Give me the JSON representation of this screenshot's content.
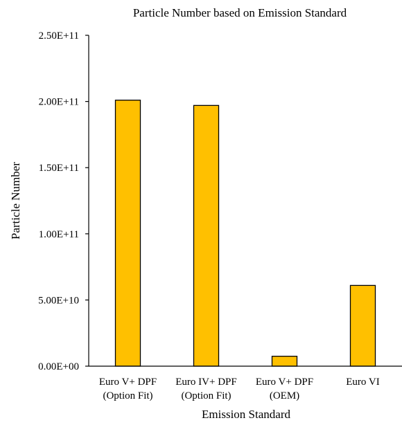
{
  "chart_data": {
    "type": "bar",
    "title": "Particle Number based on Emission Standard",
    "xlabel": "Emission Standard",
    "ylabel": "Particle Number",
    "categories": [
      [
        "Euro V+ DPF",
        "(Option Fit)"
      ],
      [
        "Euro IV+ DPF",
        "(Option Fit)"
      ],
      [
        "Euro V+ DPF",
        "(OEM)"
      ],
      [
        "Euro VI"
      ]
    ],
    "values": [
      201000000000,
      197000000000,
      7500000000,
      61000000000
    ],
    "ylim": [
      0,
      250000000000
    ],
    "yticks": [
      0,
      50000000000,
      100000000000,
      150000000000,
      200000000000,
      250000000000
    ],
    "ytick_labels": [
      "0.00E+00",
      "5.00E+10",
      "1.00E+11",
      "1.50E+11",
      "2.00E+11",
      "2.50E+11"
    ],
    "bar_color": "#FFC000",
    "bar_edge_color": "#000000",
    "grid": false,
    "legend": "none"
  }
}
